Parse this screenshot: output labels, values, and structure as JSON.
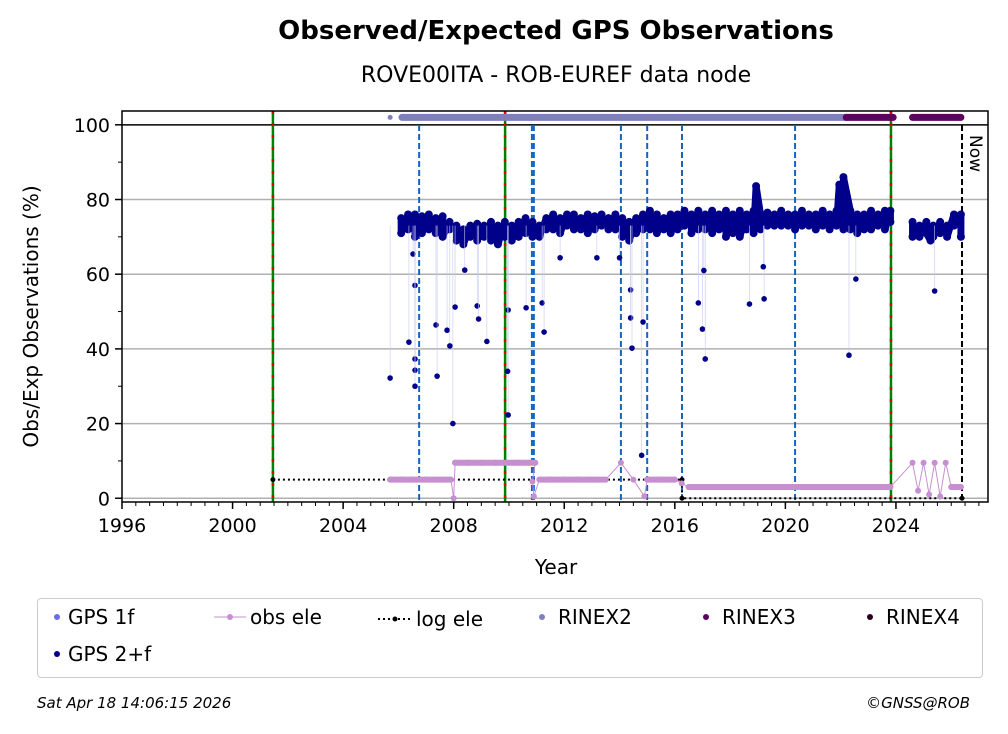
{
  "header": {
    "title": "Observed/Expected GPS Observations",
    "subtitle": "ROVE00ITA - ROB-EUREF data node"
  },
  "footer": {
    "timestamp": "Sat Apr 18 14:06:15 2026",
    "copyright": "©GNSS@ROB"
  },
  "colors": {
    "gps_1f": "#6a6af0",
    "gps_2f": "#00008b",
    "obs_ele": "#c58fd0",
    "log_ele": "#000000",
    "rinex2": "#7f7fbf",
    "rinex3": "#5e005e",
    "rinex4": "#2a0020",
    "equipment_change": "#008000",
    "equipment_change_dash": "#e00000",
    "event_line": "#1565c0",
    "grid": "#b0b0b0"
  },
  "chart_data": {
    "type": "scatter",
    "title": "Observed/Expected GPS Observations",
    "subtitle": "ROVE00ITA - ROB-EUREF data node",
    "xlabel": "Year",
    "ylabel": "Obs/Exp Observations (%)",
    "xlim": [
      1996,
      2027.33
    ],
    "ylim": [
      -1,
      103.7
    ],
    "xticks": [
      1996,
      2000,
      2004,
      2008,
      2012,
      2016,
      2020,
      2024
    ],
    "xtick_labels": [
      "1996",
      "2000",
      "2004",
      "2008",
      "2012",
      "2016",
      "2020",
      "2024"
    ],
    "yticks": [
      0,
      20,
      40,
      60,
      80,
      100
    ],
    "ytick_labels": [
      "0",
      "20",
      "40",
      "60",
      "80",
      "100"
    ],
    "grid": "horizontal",
    "now_label": "Now",
    "now_year": 2026.39,
    "equipment_change_lines": [
      2001.46,
      2009.86,
      2023.82
    ],
    "event_lines": [
      2006.75,
      2010.83,
      2010.9,
      2014.05,
      2015.0,
      2016.26,
      2020.35
    ],
    "legend": {
      "placement": "bottom",
      "entries": [
        "GPS 1f",
        "obs ele",
        "log ele",
        "RINEX2",
        "RINEX3",
        "RINEX4",
        "GPS 2+f"
      ]
    },
    "series": [
      {
        "name": "GPS 2+f",
        "points": [
          [
            2005.7,
            32.2
          ],
          [
            2006.1,
            75
          ],
          [
            2006.1,
            71
          ],
          [
            2006.35,
            76
          ],
          [
            2006.35,
            72
          ],
          [
            2006.6,
            76
          ],
          [
            2006.6,
            70
          ],
          [
            2006.85,
            75.5
          ],
          [
            2006.85,
            71
          ],
          [
            2007.1,
            76
          ],
          [
            2007.1,
            72
          ],
          [
            2007.35,
            75
          ],
          [
            2007.35,
            71
          ],
          [
            2007.6,
            75.5
          ],
          [
            2007.6,
            70
          ],
          [
            2007.85,
            74
          ],
          [
            2007.85,
            72
          ],
          [
            2008.1,
            73
          ],
          [
            2008.1,
            69
          ],
          [
            2008.35,
            72
          ],
          [
            2008.35,
            68
          ],
          [
            2008.6,
            73
          ],
          [
            2008.6,
            70
          ],
          [
            2008.85,
            73.5
          ],
          [
            2008.85,
            69
          ],
          [
            2009.1,
            73
          ],
          [
            2009.1,
            70
          ],
          [
            2009.35,
            74
          ],
          [
            2009.35,
            69
          ],
          [
            2009.6,
            73
          ],
          [
            2009.6,
            68
          ],
          [
            2009.85,
            74
          ],
          [
            2009.85,
            70
          ],
          [
            2010.1,
            73
          ],
          [
            2010.1,
            69
          ],
          [
            2010.35,
            74
          ],
          [
            2010.35,
            70
          ],
          [
            2010.6,
            75
          ],
          [
            2010.6,
            71
          ],
          [
            2010.85,
            74
          ],
          [
            2010.85,
            70
          ],
          [
            2011.1,
            73
          ],
          [
            2011.1,
            70
          ],
          [
            2011.35,
            75
          ],
          [
            2011.35,
            72
          ],
          [
            2011.6,
            76
          ],
          [
            2011.6,
            72
          ],
          [
            2011.85,
            75
          ],
          [
            2011.85,
            71
          ],
          [
            2012.1,
            76
          ],
          [
            2012.1,
            73
          ],
          [
            2012.35,
            76
          ],
          [
            2012.35,
            72
          ],
          [
            2012.6,
            75
          ],
          [
            2012.6,
            72
          ],
          [
            2012.85,
            76
          ],
          [
            2012.85,
            71
          ],
          [
            2013.1,
            75.5
          ],
          [
            2013.1,
            72
          ],
          [
            2013.35,
            76
          ],
          [
            2013.35,
            73
          ],
          [
            2013.6,
            75
          ],
          [
            2013.6,
            72
          ],
          [
            2013.85,
            76
          ],
          [
            2013.85,
            72
          ],
          [
            2014.1,
            75
          ],
          [
            2014.1,
            70
          ],
          [
            2014.35,
            74
          ],
          [
            2014.35,
            69
          ],
          [
            2014.6,
            75
          ],
          [
            2014.6,
            71
          ],
          [
            2014.85,
            76
          ],
          [
            2014.85,
            72
          ],
          [
            2015.1,
            77
          ],
          [
            2015.1,
            72
          ],
          [
            2015.35,
            76
          ],
          [
            2015.35,
            71
          ],
          [
            2015.6,
            75
          ],
          [
            2015.6,
            72
          ],
          [
            2015.85,
            76
          ],
          [
            2015.85,
            71
          ],
          [
            2016.1,
            76
          ],
          [
            2016.1,
            72
          ],
          [
            2016.35,
            77
          ],
          [
            2016.35,
            73
          ],
          [
            2016.6,
            76
          ],
          [
            2016.6,
            71
          ],
          [
            2016.85,
            77
          ],
          [
            2016.85,
            72
          ],
          [
            2017.1,
            76
          ],
          [
            2017.1,
            72
          ],
          [
            2017.35,
            77
          ],
          [
            2017.35,
            71
          ],
          [
            2017.6,
            76
          ],
          [
            2017.6,
            72
          ],
          [
            2017.85,
            77
          ],
          [
            2017.85,
            70
          ],
          [
            2018.1,
            76
          ],
          [
            2018.1,
            71
          ],
          [
            2018.35,
            77
          ],
          [
            2018.35,
            70
          ],
          [
            2018.6,
            76
          ],
          [
            2018.6,
            72
          ],
          [
            2018.85,
            77
          ],
          [
            2018.85,
            71
          ],
          [
            2019.1,
            76
          ],
          [
            2019.1,
            72
          ],
          [
            2019.35,
            76.5
          ],
          [
            2019.35,
            73
          ],
          [
            2019.6,
            76
          ],
          [
            2019.6,
            73
          ],
          [
            2019.85,
            77
          ],
          [
            2019.85,
            73
          ],
          [
            2020.1,
            76
          ],
          [
            2020.1,
            73
          ],
          [
            2020.35,
            76
          ],
          [
            2020.35,
            72
          ],
          [
            2020.6,
            77
          ],
          [
            2020.6,
            73
          ],
          [
            2020.85,
            76
          ],
          [
            2020.85,
            73
          ],
          [
            2021.1,
            76
          ],
          [
            2021.1,
            72
          ],
          [
            2021.35,
            77
          ],
          [
            2021.35,
            73
          ],
          [
            2021.6,
            76
          ],
          [
            2021.6,
            72
          ],
          [
            2021.85,
            77
          ],
          [
            2021.85,
            73
          ],
          [
            2022.1,
            76
          ],
          [
            2022.1,
            72
          ],
          [
            2022.35,
            77
          ],
          [
            2022.35,
            72
          ],
          [
            2022.6,
            76
          ],
          [
            2022.6,
            71
          ],
          [
            2022.85,
            76
          ],
          [
            2022.85,
            72
          ],
          [
            2023.1,
            77
          ],
          [
            2023.1,
            72
          ],
          [
            2023.35,
            76
          ],
          [
            2023.35,
            73
          ],
          [
            2023.6,
            77
          ],
          [
            2023.6,
            72
          ],
          [
            2023.8,
            77
          ],
          [
            2023.8,
            74
          ],
          [
            2024.6,
            74
          ],
          [
            2024.6,
            70
          ],
          [
            2024.85,
            73
          ],
          [
            2024.85,
            70
          ],
          [
            2025.1,
            74
          ],
          [
            2025.1,
            71
          ],
          [
            2025.35,
            73
          ],
          [
            2025.35,
            70
          ],
          [
            2025.6,
            74
          ],
          [
            2025.6,
            71
          ],
          [
            2025.85,
            73
          ],
          [
            2025.85,
            70
          ],
          [
            2026.1,
            76
          ],
          [
            2026.1,
            73
          ],
          [
            2026.35,
            76
          ],
          [
            2026.35,
            70
          ],
          [
            2006.38,
            41.8
          ],
          [
            2006.53,
            65.4
          ],
          [
            2006.6,
            57
          ],
          [
            2006.6,
            37.3
          ],
          [
            2006.6,
            34.3
          ],
          [
            2006.6,
            30
          ],
          [
            2007.36,
            46.4
          ],
          [
            2007.4,
            32.7
          ],
          [
            2007.76,
            45.0
          ],
          [
            2007.86,
            40.8
          ],
          [
            2007.97,
            20
          ],
          [
            2008.05,
            51.2
          ],
          [
            2008.4,
            61.1
          ],
          [
            2008.85,
            51.5
          ],
          [
            2008.9,
            48
          ],
          [
            2009.2,
            42
          ],
          [
            2009.97,
            50.4
          ],
          [
            2009.97,
            22.3
          ],
          [
            2009.95,
            34
          ],
          [
            2010.62,
            51
          ],
          [
            2011.2,
            52.3
          ],
          [
            2011.27,
            44.5
          ],
          [
            2011.85,
            64.4
          ],
          [
            2013.18,
            64.4
          ],
          [
            2014.0,
            64.4
          ],
          [
            2014.4,
            55.8
          ],
          [
            2014.4,
            48.3
          ],
          [
            2014.45,
            40.2
          ],
          [
            2014.8,
            11.5
          ],
          [
            2014.85,
            47.2
          ],
          [
            2016.85,
            52.3
          ],
          [
            2017.0,
            45.3
          ],
          [
            2017.1,
            37.3
          ],
          [
            2017.05,
            61
          ],
          [
            2018.94,
            83.6
          ],
          [
            2018.7,
            52
          ],
          [
            2019.23,
            53.4
          ],
          [
            2019.2,
            62
          ],
          [
            2022.1,
            86
          ],
          [
            2021.95,
            84
          ],
          [
            2022.0,
            82.8
          ],
          [
            2022.3,
            38.3
          ],
          [
            2022.55,
            58.7
          ],
          [
            2025.4,
            55.5
          ],
          [
            2025.25,
            69
          ]
        ]
      },
      {
        "name": "obs ele",
        "points": [
          [
            2005.7,
            5
          ],
          [
            2006.1,
            5
          ],
          [
            2006.5,
            5
          ],
          [
            2007.0,
            5
          ],
          [
            2007.5,
            5
          ],
          [
            2007.9,
            5
          ],
          [
            2008.0,
            0
          ],
          [
            2008.05,
            9.5
          ],
          [
            2008.5,
            9.5
          ],
          [
            2009.0,
            9.5
          ],
          [
            2009.5,
            9.5
          ],
          [
            2009.9,
            9.5
          ],
          [
            2010.3,
            9.5
          ],
          [
            2010.7,
            9.5
          ],
          [
            2010.95,
            9.5
          ],
          [
            2010.85,
            4.5
          ],
          [
            2010.9,
            0.5
          ],
          [
            2011.1,
            5
          ],
          [
            2011.5,
            5
          ],
          [
            2012.0,
            5
          ],
          [
            2012.5,
            5
          ],
          [
            2013.0,
            5
          ],
          [
            2013.5,
            5
          ],
          [
            2014.05,
            9.5
          ],
          [
            2014.5,
            5
          ],
          [
            2014.9,
            0.5
          ],
          [
            2015.0,
            5
          ],
          [
            2015.5,
            5
          ],
          [
            2016.0,
            5
          ],
          [
            2016.25,
            4
          ],
          [
            2016.5,
            3
          ],
          [
            2017.0,
            3
          ],
          [
            2017.5,
            3
          ],
          [
            2018.0,
            3
          ],
          [
            2018.5,
            3
          ],
          [
            2019.0,
            3
          ],
          [
            2019.5,
            3
          ],
          [
            2020.0,
            3
          ],
          [
            2020.5,
            3
          ],
          [
            2021.0,
            3
          ],
          [
            2021.5,
            3
          ],
          [
            2022.0,
            3
          ],
          [
            2022.5,
            3
          ],
          [
            2023.0,
            3
          ],
          [
            2023.8,
            3
          ],
          [
            2024.6,
            9.5
          ],
          [
            2024.8,
            2
          ],
          [
            2025.0,
            9.5
          ],
          [
            2025.2,
            1
          ],
          [
            2025.4,
            9.5
          ],
          [
            2025.6,
            0.5
          ],
          [
            2025.8,
            9.5
          ],
          [
            2026.0,
            3
          ],
          [
            2026.2,
            3
          ],
          [
            2026.35,
            3
          ]
        ]
      },
      {
        "name": "log ele",
        "points": [
          [
            2001.46,
            5
          ],
          [
            2016.26,
            5
          ],
          [
            2016.26,
            0
          ],
          [
            2026.39,
            0
          ]
        ]
      },
      {
        "name": "RINEX2",
        "points": [
          [
            2005.7,
            102
          ],
          [
            2006.13,
            102
          ],
          [
            2022.2,
            102
          ]
        ]
      },
      {
        "name": "RINEX3",
        "points": [
          [
            2022.2,
            102
          ],
          [
            2023.9,
            102
          ],
          [
            2024.6,
            102
          ],
          [
            2026.35,
            102
          ]
        ]
      },
      {
        "name": "RINEX4",
        "points": []
      },
      {
        "name": "GPS 1f",
        "points": []
      }
    ]
  }
}
